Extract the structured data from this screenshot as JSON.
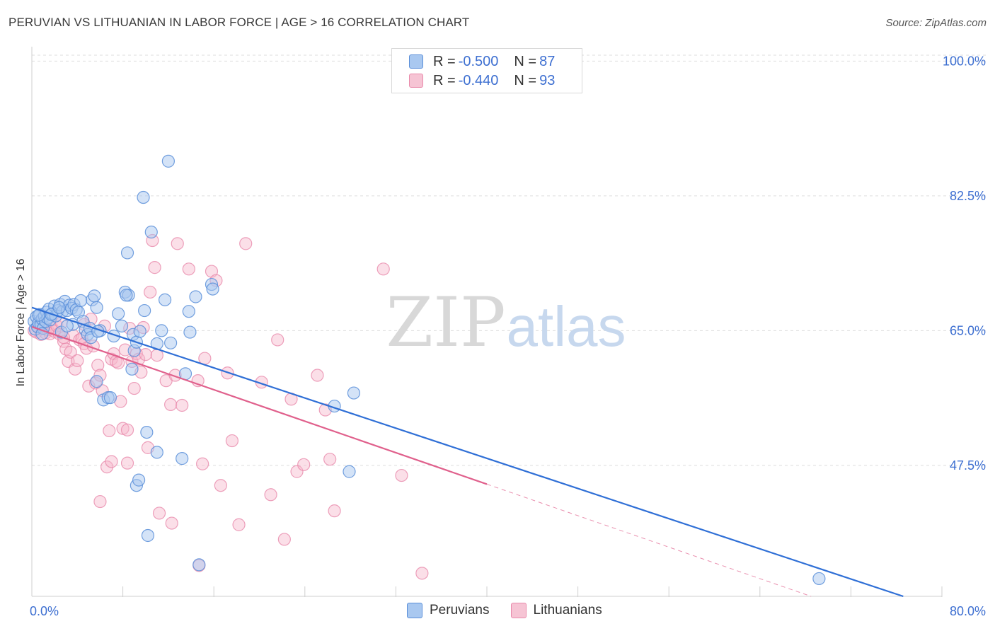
{
  "title": "PERUVIAN VS LITHUANIAN IN LABOR FORCE | AGE > 16 CORRELATION CHART",
  "source": "Source: ZipAtlas.com",
  "watermark": {
    "zip": "ZIP",
    "atlas": "atlas"
  },
  "legend_top": [
    {
      "r_label": "R =",
      "r_value": "-0.500",
      "n_label": "N =",
      "n_value": "87"
    },
    {
      "r_label": "R =",
      "r_value": "-0.440",
      "n_label": "N =",
      "n_value": "93"
    }
  ],
  "legend_bottom": [
    {
      "label": "Peruvians"
    },
    {
      "label": "Lithuanians"
    }
  ],
  "colors": {
    "peruvians_fill": "#a9c8f0",
    "peruvians_stroke": "#5b8fd9",
    "peruvians_line": "#2f6fd6",
    "lithuanians_fill": "#f6b8cc",
    "lithuanians_stroke": "#e98aab",
    "lithuanians_line": "#e0608c",
    "tick_label": "#3d6fd1",
    "grid": "#dddddd"
  },
  "chart_data": {
    "type": "scatter",
    "title": "PERUVIAN VS LITHUANIAN IN LABOR FORCE | AGE > 16 CORRELATION CHART",
    "xlabel": "",
    "ylabel": "In Labor Force | Age > 16",
    "xlim": [
      0,
      80
    ],
    "ylim": [
      30.5,
      101.5
    ],
    "x_tick_labels": [
      {
        "value": 0,
        "label": "0.0%"
      },
      {
        "value": 80,
        "label": "80.0%"
      }
    ],
    "y_ticks": [
      {
        "value": 100,
        "label": "100.0%"
      },
      {
        "value": 82.5,
        "label": "82.5%"
      },
      {
        "value": 65,
        "label": "65.0%"
      },
      {
        "value": 47.5,
        "label": "47.5%"
      }
    ],
    "x_minor_ticks": [
      8,
      16,
      24,
      32,
      40,
      48,
      56,
      64,
      72,
      80
    ],
    "series": [
      {
        "name": "Peruvians",
        "r": -0.5,
        "n": 87,
        "trend": {
          "x0": 0,
          "y0": 68.0,
          "x1": 76.6,
          "y1": 30.5,
          "dashed_from": null
        },
        "points": [
          [
            0.2,
            66.2
          ],
          [
            0.3,
            65.2
          ],
          [
            0.4,
            66.8
          ],
          [
            0.5,
            65.5
          ],
          [
            0.6,
            66.0
          ],
          [
            0.7,
            67.1
          ],
          [
            0.8,
            65.8
          ],
          [
            0.9,
            66.5
          ],
          [
            1.0,
            65.3
          ],
          [
            1.1,
            66.9
          ],
          [
            1.2,
            66.2
          ],
          [
            1.3,
            67.4
          ],
          [
            1.4,
            66.6
          ],
          [
            1.5,
            67.8
          ],
          [
            1.6,
            66.4
          ],
          [
            1.8,
            67.2
          ],
          [
            2.0,
            68.2
          ],
          [
            2.1,
            66.9
          ],
          [
            2.3,
            67.6
          ],
          [
            2.5,
            68.4
          ],
          [
            2.7,
            67.5
          ],
          [
            2.9,
            68.8
          ],
          [
            3.1,
            67.6
          ],
          [
            3.3,
            68.3
          ],
          [
            3.5,
            67.9
          ],
          [
            3.7,
            68.4
          ],
          [
            3.9,
            67.7
          ],
          [
            4.1,
            67.4
          ],
          [
            2.6,
            64.8
          ],
          [
            3.6,
            65.8
          ],
          [
            4.3,
            68.9
          ],
          [
            4.5,
            66.2
          ],
          [
            4.7,
            65.1
          ],
          [
            4.9,
            64.5
          ],
          [
            5.1,
            65.3
          ],
          [
            5.3,
            69.0
          ],
          [
            5.5,
            69.5
          ],
          [
            5.7,
            68.0
          ],
          [
            6.0,
            65.0
          ],
          [
            6.3,
            56.0
          ],
          [
            6.7,
            56.3
          ],
          [
            7.2,
            64.3
          ],
          [
            7.6,
            67.2
          ],
          [
            7.9,
            65.6
          ],
          [
            8.2,
            70.0
          ],
          [
            8.5,
            69.6
          ],
          [
            8.8,
            60.0
          ],
          [
            8.9,
            64.5
          ],
          [
            9.0,
            62.4
          ],
          [
            9.2,
            63.5
          ],
          [
            9.5,
            64.9
          ],
          [
            9.9,
            67.6
          ],
          [
            10.1,
            51.8
          ],
          [
            10.5,
            77.8
          ],
          [
            11.0,
            63.3
          ],
          [
            11.4,
            65.0
          ],
          [
            11.7,
            69.0
          ],
          [
            12.0,
            87.0
          ],
          [
            12.2,
            63.4
          ],
          [
            13.2,
            48.4
          ],
          [
            13.5,
            59.4
          ],
          [
            13.8,
            67.5
          ],
          [
            13.9,
            64.8
          ],
          [
            14.4,
            69.4
          ],
          [
            6.9,
            56.3
          ],
          [
            9.8,
            82.3
          ],
          [
            8.3,
            69.6
          ],
          [
            14.7,
            34.6
          ],
          [
            15.8,
            71.0
          ],
          [
            15.9,
            70.4
          ],
          [
            26.6,
            55.2
          ],
          [
            28.3,
            56.9
          ],
          [
            27.9,
            46.7
          ],
          [
            69.2,
            32.8
          ],
          [
            9.2,
            44.9
          ],
          [
            9.4,
            45.6
          ],
          [
            10.2,
            38.4
          ],
          [
            11.0,
            49.2
          ],
          [
            5.2,
            64.1
          ],
          [
            5.8,
            64.9
          ],
          [
            0.6,
            67.0
          ],
          [
            0.9,
            64.6
          ],
          [
            1.7,
            67.1
          ],
          [
            2.4,
            68.0
          ],
          [
            3.1,
            65.6
          ],
          [
            5.7,
            58.4
          ],
          [
            8.4,
            75.1
          ]
        ]
      },
      {
        "name": "Lithuanians",
        "r": -0.44,
        "n": 93,
        "trend": {
          "x0": 0,
          "y0": 65.5,
          "x1": 68.5,
          "y1": 30.5,
          "dashed_from": 40.0
        },
        "points": [
          [
            0.2,
            65.0
          ],
          [
            0.4,
            64.8
          ],
          [
            0.6,
            65.4
          ],
          [
            0.8,
            64.5
          ],
          [
            1.0,
            65.7
          ],
          [
            1.2,
            64.7
          ],
          [
            1.4,
            65.1
          ],
          [
            1.6,
            64.6
          ],
          [
            1.8,
            65.3
          ],
          [
            2.0,
            64.9
          ],
          [
            2.2,
            65.6
          ],
          [
            2.4,
            64.6
          ],
          [
            2.6,
            66.0
          ],
          [
            2.8,
            63.6
          ],
          [
            3.0,
            62.6
          ],
          [
            3.2,
            61.0
          ],
          [
            3.4,
            62.2
          ],
          [
            3.6,
            64.4
          ],
          [
            3.8,
            60.0
          ],
          [
            4.0,
            61.1
          ],
          [
            4.2,
            63.8
          ],
          [
            4.4,
            64.0
          ],
          [
            4.6,
            63.3
          ],
          [
            4.8,
            62.7
          ],
          [
            5.0,
            57.8
          ],
          [
            5.2,
            66.5
          ],
          [
            5.4,
            63.0
          ],
          [
            5.6,
            58.2
          ],
          [
            5.8,
            60.5
          ],
          [
            6.0,
            59.2
          ],
          [
            6.2,
            57.2
          ],
          [
            6.4,
            65.6
          ],
          [
            6.6,
            47.3
          ],
          [
            6.8,
            52.0
          ],
          [
            7.0,
            61.3
          ],
          [
            7.2,
            62.0
          ],
          [
            7.4,
            61.0
          ],
          [
            7.6,
            60.8
          ],
          [
            7.8,
            55.8
          ],
          [
            8.0,
            52.3
          ],
          [
            8.2,
            62.5
          ],
          [
            8.4,
            52.1
          ],
          [
            8.6,
            65.3
          ],
          [
            8.8,
            61.0
          ],
          [
            9.0,
            57.5
          ],
          [
            9.2,
            62.0
          ],
          [
            9.4,
            61.3
          ],
          [
            9.6,
            59.6
          ],
          [
            9.8,
            65.4
          ],
          [
            10.0,
            61.9
          ],
          [
            10.2,
            49.8
          ],
          [
            10.4,
            70.0
          ],
          [
            10.6,
            76.7
          ],
          [
            10.8,
            73.2
          ],
          [
            11.0,
            61.8
          ],
          [
            11.2,
            41.3
          ],
          [
            11.8,
            58.5
          ],
          [
            12.2,
            55.4
          ],
          [
            12.6,
            59.2
          ],
          [
            12.8,
            76.3
          ],
          [
            13.2,
            55.3
          ],
          [
            13.8,
            73.0
          ],
          [
            14.6,
            58.5
          ],
          [
            14.7,
            34.5
          ],
          [
            15.2,
            61.4
          ],
          [
            15.8,
            72.7
          ],
          [
            16.2,
            71.5
          ],
          [
            16.6,
            44.9
          ],
          [
            17.2,
            59.5
          ],
          [
            17.6,
            50.7
          ],
          [
            18.2,
            39.8
          ],
          [
            18.8,
            76.3
          ],
          [
            20.2,
            58.3
          ],
          [
            21.0,
            43.7
          ],
          [
            21.6,
            63.8
          ],
          [
            22.2,
            37.9
          ],
          [
            22.8,
            56.1
          ],
          [
            23.3,
            46.7
          ],
          [
            23.9,
            47.6
          ],
          [
            25.1,
            59.2
          ],
          [
            25.8,
            54.7
          ],
          [
            26.2,
            48.3
          ],
          [
            26.6,
            41.6
          ],
          [
            30.9,
            73.0
          ],
          [
            32.5,
            46.2
          ],
          [
            34.3,
            33.5
          ],
          [
            6.0,
            42.8
          ],
          [
            7.0,
            48.0
          ],
          [
            8.4,
            47.8
          ],
          [
            12.3,
            40.0
          ],
          [
            15.0,
            47.7
          ],
          [
            2.8,
            64.1
          ],
          [
            4.6,
            65.8
          ]
        ]
      }
    ]
  }
}
